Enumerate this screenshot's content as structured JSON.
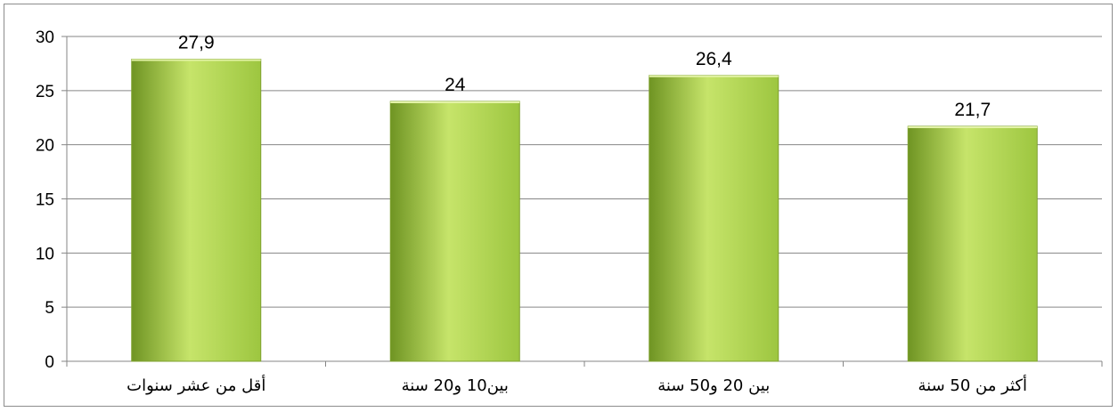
{
  "chart_data": {
    "type": "bar",
    "categories": [
      "أقل من عشر سنوات",
      "بين10 و20 سنة",
      "بين 20 و50 سنة",
      "أكثر من 50 سنة"
    ],
    "values": [
      27.9,
      24,
      26.4,
      21.7
    ],
    "data_labels": [
      "27,9",
      "24",
      "26,4",
      "21,7"
    ],
    "ylim": [
      0,
      30
    ],
    "yticks": [
      0,
      5,
      10,
      15,
      20,
      25,
      30
    ],
    "grid": true,
    "legend": "none",
    "colors": {
      "bar_light": "#c6e46a",
      "bar_mid": "#9dc640",
      "bar_dark": "#6f9423",
      "grid": "#868686"
    }
  }
}
